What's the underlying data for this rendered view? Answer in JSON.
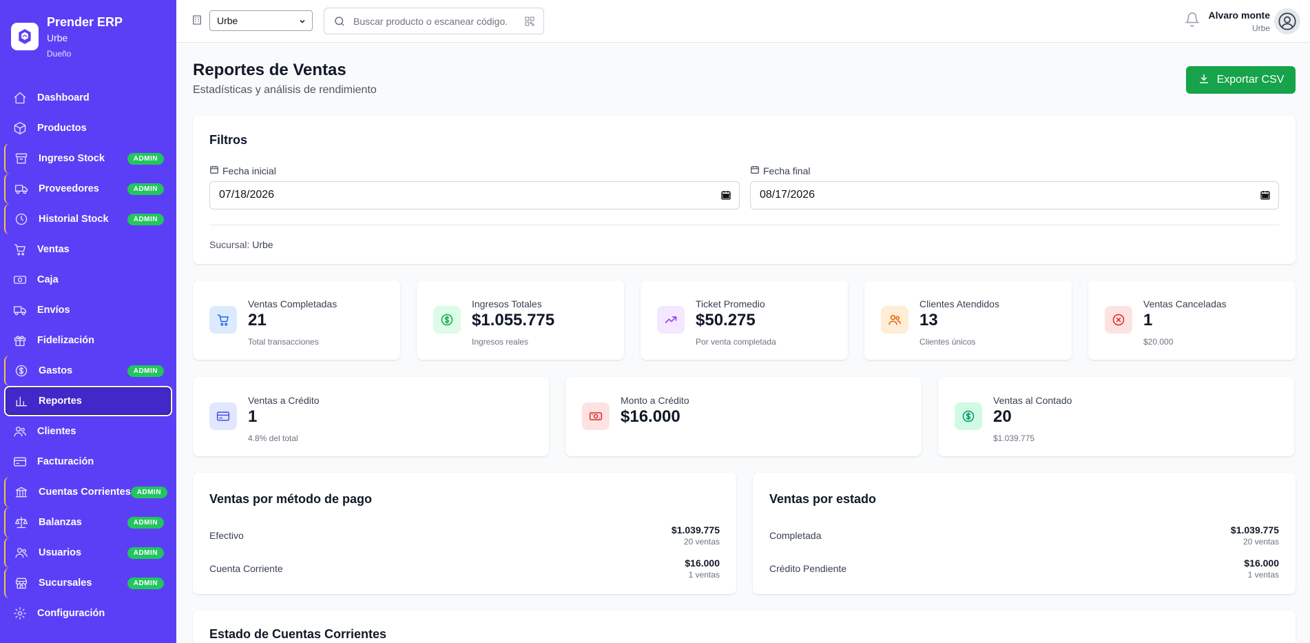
{
  "brand": {
    "name": "Prender ERP",
    "branch": "Urbe",
    "role": "Dueño"
  },
  "sidebar": {
    "items": [
      {
        "label": "Dashboard",
        "icon": "home-icon",
        "admin": false
      },
      {
        "label": "Productos",
        "icon": "box-icon",
        "admin": false
      },
      {
        "label": "Ingreso Stock",
        "icon": "archive-icon",
        "admin": true
      },
      {
        "label": "Proveedores",
        "icon": "truck-icon",
        "admin": true
      },
      {
        "label": "Historial Stock",
        "icon": "clock-icon",
        "admin": true
      },
      {
        "label": "Ventas",
        "icon": "cart-icon",
        "admin": false
      },
      {
        "label": "Caja",
        "icon": "cash-icon",
        "admin": false
      },
      {
        "label": "Envíos",
        "icon": "truck-icon",
        "admin": false
      },
      {
        "label": "Fidelización",
        "icon": "gift-icon",
        "admin": false
      },
      {
        "label": "Gastos",
        "icon": "dollar-circle-icon",
        "admin": true
      },
      {
        "label": "Reportes",
        "icon": "bar-chart-icon",
        "admin": false,
        "active": true
      },
      {
        "label": "Clientes",
        "icon": "users-icon",
        "admin": false
      },
      {
        "label": "Facturación",
        "icon": "credit-card-icon",
        "admin": false
      },
      {
        "label": "Cuentas Corrientes",
        "icon": "bank-icon",
        "admin": true
      },
      {
        "label": "Balanzas",
        "icon": "scale-icon",
        "admin": true
      },
      {
        "label": "Usuarios",
        "icon": "users-icon",
        "admin": true
      },
      {
        "label": "Sucursales",
        "icon": "store-icon",
        "admin": true
      },
      {
        "label": "Configuración",
        "icon": "gear-icon",
        "admin": false
      }
    ],
    "admin_badge": "ADMIN"
  },
  "topbar": {
    "branch_select": "Urbe",
    "search_placeholder": "Buscar producto o escanear código.",
    "user_name": "Alvaro monte",
    "user_branch": "Urbe"
  },
  "page": {
    "title": "Reportes de Ventas",
    "subtitle": "Estadísticas y análisis de rendimiento",
    "export_label": "Exportar CSV"
  },
  "filters": {
    "title": "Filtros",
    "start_label": "Fecha inicial",
    "start_value": "07/18/2026",
    "end_label": "Fecha final",
    "end_value": "08/17/2026",
    "branch_prefix": "Sucursal:",
    "branch_value": "Urbe"
  },
  "stats_row1": [
    {
      "label": "Ventas Completadas",
      "value": "21",
      "sub": "Total transacciones",
      "icon": "cart-icon",
      "bg": "#dbeafe",
      "fg": "#2563eb"
    },
    {
      "label": "Ingresos Totales",
      "value": "$1.055.775",
      "sub": "Ingresos reales",
      "icon": "dollar-circle-icon",
      "bg": "#dcfce7",
      "fg": "#16a34a"
    },
    {
      "label": "Ticket Promedio",
      "value": "$50.275",
      "sub": "Por venta completada",
      "icon": "trending-up-icon",
      "bg": "#f3e8ff",
      "fg": "#9333ea"
    },
    {
      "label": "Clientes Atendidos",
      "value": "13",
      "sub": "Clientes únicos",
      "icon": "users-icon",
      "bg": "#ffedd5",
      "fg": "#ea580c"
    },
    {
      "label": "Ventas Canceladas",
      "value": "1",
      "sub": "$20.000",
      "icon": "x-circle-icon",
      "bg": "#fee2e2",
      "fg": "#dc2626"
    }
  ],
  "stats_row2": [
    {
      "label": "Ventas a Crédito",
      "value": "1",
      "sub": "4.8% del total",
      "icon": "credit-card-icon",
      "bg": "#e0e7ff",
      "fg": "#4f46e5"
    },
    {
      "label": "Monto a Crédito",
      "value": "$16.000",
      "sub": "",
      "icon": "banknote-icon",
      "bg": "#fee2e2",
      "fg": "#dc2626"
    },
    {
      "label": "Ventas al Contado",
      "value": "20",
      "sub": "$1.039.775",
      "icon": "dollar-circle-icon",
      "bg": "#d1fae5",
      "fg": "#059669"
    }
  ],
  "payment_methods": {
    "title": "Ventas por método de pago",
    "rows": [
      {
        "name": "Efectivo",
        "amount": "$1.039.775",
        "count": "20 ventas"
      },
      {
        "name": "Cuenta Corriente",
        "amount": "$16.000",
        "count": "1 ventas"
      }
    ]
  },
  "by_status": {
    "title": "Ventas por estado",
    "rows": [
      {
        "name": "Completada",
        "amount": "$1.039.775",
        "count": "20 ventas"
      },
      {
        "name": "Crédito Pendiente",
        "amount": "$16.000",
        "count": "1 ventas"
      }
    ]
  },
  "accounts": {
    "title": "Estado de Cuentas Corrientes"
  }
}
